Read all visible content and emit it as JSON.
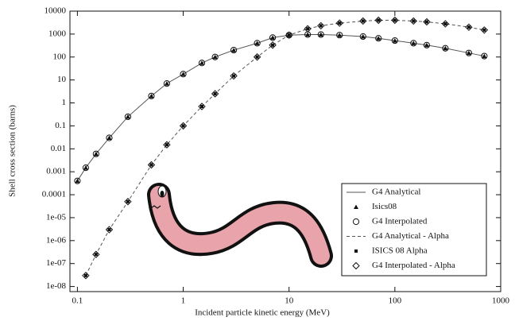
{
  "chart_data": {
    "type": "line",
    "xlabel": "Incident particle kinetic energy (MeV)",
    "ylabel": "Shell cross section (barns)",
    "log_x": true,
    "log_y": true,
    "xlim": [
      0.085,
      1000
    ],
    "ylim": [
      6e-09,
      10000
    ],
    "xticks": [
      0.1,
      1,
      10,
      100,
      1000
    ],
    "yticks": [
      {
        "value": 1e-08,
        "label": "1e-08"
      },
      {
        "value": 1e-07,
        "label": "1e-07"
      },
      {
        "value": 1e-06,
        "label": "1e-06"
      },
      {
        "value": 1e-05,
        "label": "1e-05"
      },
      0.0001,
      0.001,
      0.01,
      0.1,
      1,
      10,
      100,
      1000,
      10000
    ],
    "legend": "lower right",
    "x": [
      0.1,
      0.12,
      0.15,
      0.2,
      0.3,
      0.5,
      0.7,
      1,
      1.5,
      2,
      3,
      5,
      7,
      10,
      15,
      20,
      30,
      50,
      70,
      100,
      150,
      200,
      300,
      500,
      700
    ],
    "series": [
      {
        "name": "G4 Analytical",
        "color": "#555555",
        "style": "solid",
        "values": [
          0.0004,
          0.0015,
          0.006,
          0.03,
          0.25,
          2,
          7,
          18,
          55,
          100,
          200,
          400,
          700,
          900,
          950,
          950,
          900,
          780,
          650,
          520,
          400,
          330,
          240,
          150,
          110
        ]
      },
      {
        "name": "Isics08",
        "color": "#111111",
        "marker": "triangle",
        "values": [
          0.0004,
          0.0015,
          0.006,
          0.03,
          0.25,
          2,
          7,
          18,
          55,
          100,
          200,
          400,
          700,
          900,
          950,
          950,
          900,
          780,
          650,
          520,
          400,
          330,
          240,
          150,
          110
        ]
      },
      {
        "name": "G4 Interpolated",
        "color": "#111111",
        "marker": "circle",
        "values": [
          0.0004,
          0.0015,
          0.006,
          0.03,
          0.25,
          2,
          7,
          18,
          55,
          100,
          200,
          400,
          700,
          900,
          950,
          950,
          900,
          780,
          650,
          520,
          400,
          330,
          240,
          150,
          110
        ]
      },
      {
        "name": "G4 Analytical - Alpha",
        "color": "#555555",
        "style": "dashed",
        "values": [
          null,
          3e-08,
          2.5e-07,
          3e-06,
          5e-05,
          0.002,
          0.015,
          0.1,
          0.7,
          2.5,
          15,
          100,
          330,
          900,
          1700,
          2300,
          3000,
          3700,
          4000,
          4000,
          3700,
          3400,
          2800,
          2000,
          1500
        ]
      },
      {
        "name": "ISICS 08 Alpha",
        "color": "#111111",
        "marker": "square",
        "values": [
          null,
          3e-08,
          2.5e-07,
          3e-06,
          5e-05,
          0.002,
          0.015,
          0.1,
          0.7,
          2.5,
          15,
          100,
          330,
          900,
          1700,
          2300,
          3000,
          3700,
          4000,
          4000,
          3700,
          3400,
          2800,
          2000,
          1500
        ]
      },
      {
        "name": "G4 Interpolated - Alpha",
        "color": "#111111",
        "marker": "diamond",
        "values": [
          null,
          3e-08,
          2.5e-07,
          3e-06,
          5e-05,
          0.002,
          0.015,
          0.1,
          0.7,
          2.5,
          15,
          100,
          330,
          900,
          1700,
          2300,
          3000,
          3700,
          4000,
          4000,
          3700,
          3400,
          2800,
          2000,
          1500
        ]
      }
    ]
  }
}
